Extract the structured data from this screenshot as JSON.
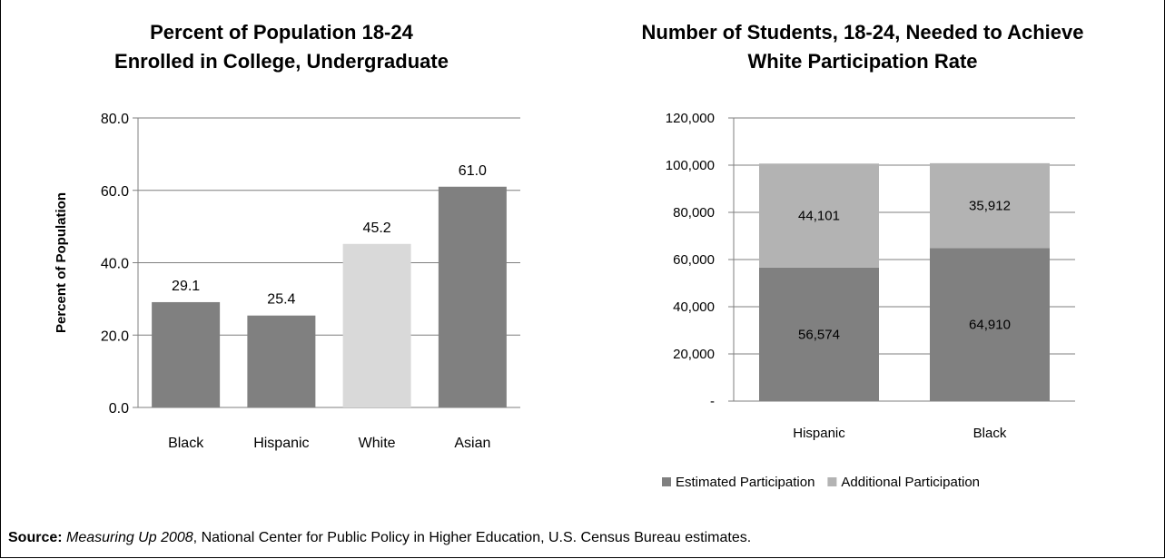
{
  "chart_data": [
    {
      "type": "bar",
      "title_lines": [
        "Percent of Population 18-24",
        "Enrolled in College, Undergraduate"
      ],
      "xlabel": "",
      "ylabel": "Percent of Population",
      "ylim": [
        0,
        80
      ],
      "yticks": [
        "0.0",
        "20.0",
        "40.0",
        "60.0",
        "80.0"
      ],
      "categories": [
        "Black",
        "Hispanic",
        "White",
        "Asian"
      ],
      "values": [
        29.1,
        25.4,
        45.2,
        61.0
      ],
      "value_labels": [
        "29.1",
        "25.4",
        "45.2",
        "61.0"
      ],
      "colors": [
        "#808080",
        "#808080",
        "#d9d9d9",
        "#808080"
      ],
      "grid": true
    },
    {
      "type": "bar",
      "stacked": true,
      "title_lines": [
        "Number of Students, 18-24, Needed to Achieve",
        "White Participation Rate"
      ],
      "xlabel": "",
      "ylabel": "",
      "ylim": [
        0,
        120000
      ],
      "yticks": [
        "-",
        "20,000",
        "40,000",
        "60,000",
        "80,000",
        "100,000",
        "120,000"
      ],
      "categories": [
        "Hispanic",
        "Black"
      ],
      "series": [
        {
          "name": "Estimated Participation",
          "values": [
            56574,
            64910
          ],
          "labels": [
            "56,574",
            "64,910"
          ],
          "color": "#808080"
        },
        {
          "name": "Additional Participation",
          "values": [
            44101,
            35912
          ],
          "labels": [
            "44,101",
            "35,912"
          ],
          "color": "#b3b3b3"
        }
      ],
      "legend": "bottom",
      "grid": true
    }
  ],
  "source": {
    "label": "Source:",
    "italic": "Measuring Up 2008",
    "rest": ", National Center for Public Policy in Higher Education, U.S. Census Bureau estimates."
  }
}
